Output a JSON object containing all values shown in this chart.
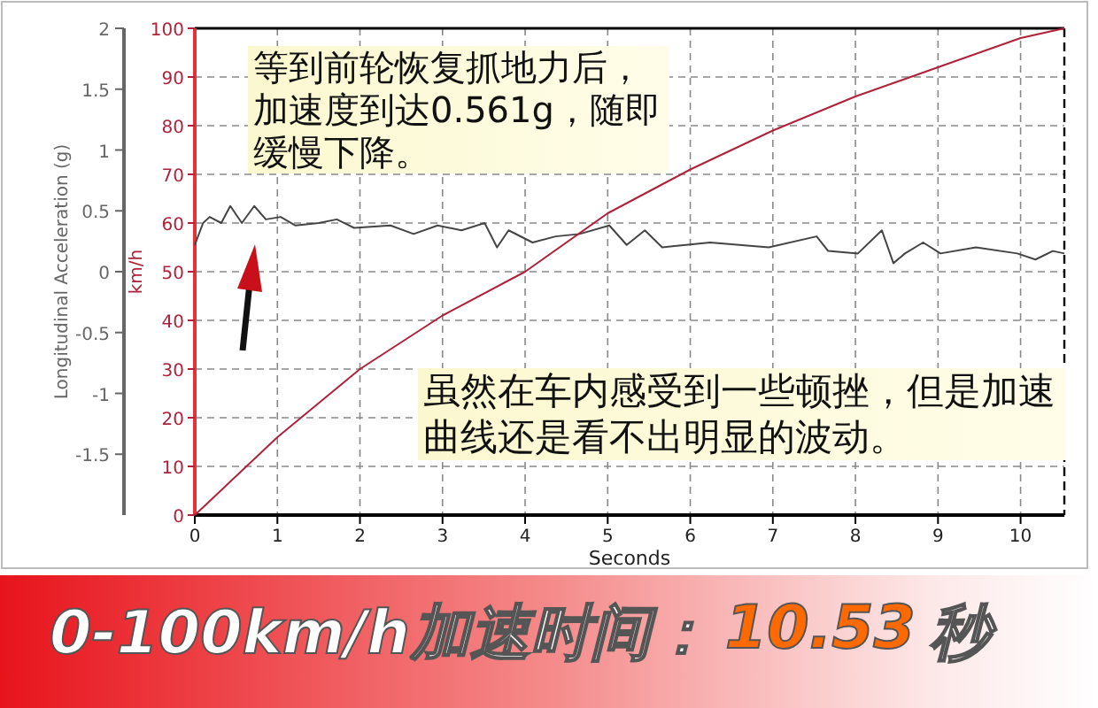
{
  "chart_data": {
    "type": "line",
    "xlabel": "Seconds",
    "ylabel": "Longitudinal Acceleration (g)",
    "y2label": "km/h",
    "xlim": [
      0,
      10.53
    ],
    "xticks": [
      0,
      1,
      2,
      3,
      4,
      5,
      6,
      7,
      8,
      9,
      10
    ],
    "ylim": [
      -2,
      2
    ],
    "yticks": [
      -1.5,
      -1,
      -0.5,
      0,
      0.5,
      1,
      1.5,
      2
    ],
    "y2lim": [
      0,
      100
    ],
    "y2ticks": [
      0,
      10,
      20,
      30,
      40,
      50,
      60,
      70,
      80,
      90,
      100
    ],
    "grid": true,
    "series": [
      {
        "color": "#444444",
        "x": [
          0,
          0.1,
          0.18,
          0.32,
          0.43,
          0.57,
          0.72,
          0.86,
          1.04,
          1.22,
          1.5,
          1.72,
          1.93,
          2.37,
          2.65,
          2.94,
          3.23,
          3.51,
          3.66,
          3.8,
          4.09,
          4.37,
          4.66,
          5.02,
          5.23,
          5.45,
          5.66,
          6.24,
          6.95,
          7.53,
          7.67,
          8.03,
          8.32,
          8.46,
          8.6,
          8.82,
          9.03,
          9.46,
          9.96,
          10.18,
          10.39,
          10.53
        ],
        "values": [
          0.22,
          0.4,
          0.45,
          0.4,
          0.54,
          0.4,
          0.54,
          0.43,
          0.45,
          0.38,
          0.4,
          0.43,
          0.36,
          0.38,
          0.31,
          0.38,
          0.34,
          0.4,
          0.2,
          0.34,
          0.24,
          0.29,
          0.31,
          0.38,
          0.22,
          0.34,
          0.2,
          0.24,
          0.2,
          0.29,
          0.17,
          0.15,
          0.34,
          0.07,
          0.15,
          0.24,
          0.15,
          0.2,
          0.15,
          0.1,
          0.17,
          0.15
        ]
      },
      {
        "color": "#b0213a",
        "axis": "y2",
        "x": [
          0,
          1,
          2,
          3,
          4,
          5,
          6,
          7,
          8,
          9,
          10,
          10.53
        ],
        "values": [
          0,
          16,
          30,
          41,
          50,
          62,
          71,
          79,
          86,
          92,
          98,
          100
        ]
      }
    ],
    "annotations": [
      "等到前轮恢复抓地力后，加速度到达0.561g，随即缓慢下降。",
      "虽然在车内感受到一些顿挫，但是加速曲线还是看不出明显的波动。",
      "0-100km/h加速时间：",
      "10.53",
      "秒"
    ]
  }
}
